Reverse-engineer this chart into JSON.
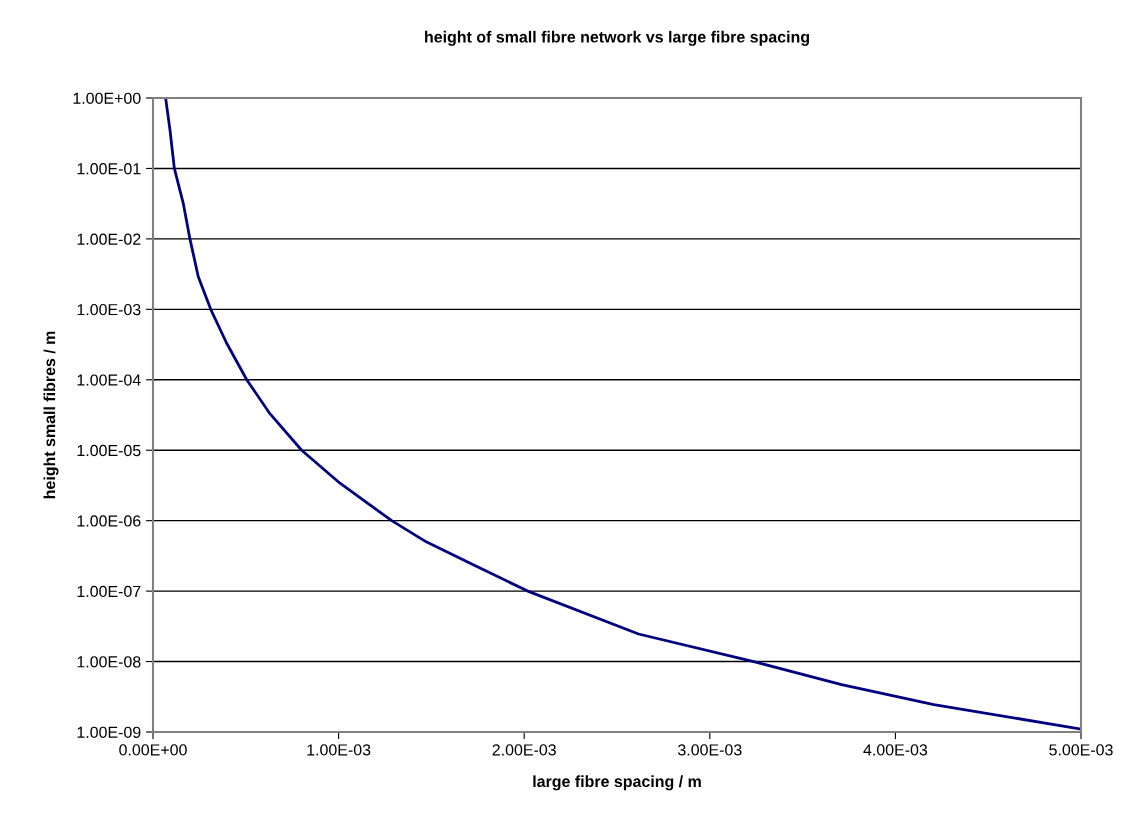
{
  "chart_data": {
    "type": "line",
    "title": "height of small fibre network vs large fibre spacing",
    "xlabel": "large fibre spacing / m",
    "ylabel": "height small fibres / m",
    "series": [
      {
        "color": "#000080",
        "x": [
          6.8e-05,
          9.16e-05,
          0.000115,
          0.000163,
          0.000199,
          0.000244,
          0.000311,
          0.000397,
          0.000505,
          0.00063,
          0.000801,
          0.0010075,
          0.001286,
          0.001472,
          0.00172,
          0.002019,
          0.002616,
          0.003237,
          0.00371,
          0.004207,
          0.005
        ],
        "values": [
          1.0,
          0.35,
          0.1,
          0.032,
          0.01,
          0.0029,
          0.001,
          0.00033,
          0.0001,
          3.3e-05,
          1e-05,
          3.4e-06,
          1e-06,
          5e-07,
          2.4e-07,
          1e-07,
          2.46e-08,
          1e-08,
          4.7e-09,
          2.45e-09,
          1.1e-09
        ]
      }
    ],
    "xlim": [
      0,
      0.005
    ],
    "xticks": [
      {
        "value": 0,
        "label": "0.00E+00"
      },
      {
        "value": 0.001,
        "label": "1.00E-03"
      },
      {
        "value": 0.002,
        "label": "2.00E-03"
      },
      {
        "value": 0.003,
        "label": "3.00E-03"
      },
      {
        "value": 0.004,
        "label": "4.00E-03"
      },
      {
        "value": 0.005,
        "label": "5.00E-03"
      }
    ],
    "log": "y",
    "ylim": [
      1e-09,
      1
    ],
    "yticks": [
      {
        "value": 1e-09,
        "label": "1.00E-09"
      },
      {
        "value": 1e-08,
        "label": "1.00E-08"
      },
      {
        "value": 1e-07,
        "label": "1.00E-07"
      },
      {
        "value": 1e-06,
        "label": "1.00E-06"
      },
      {
        "value": 1e-05,
        "label": "1.00E-05"
      },
      {
        "value": 0.0001,
        "label": "1.00E-04"
      },
      {
        "value": 0.001,
        "label": "1.00E-03"
      },
      {
        "value": 0.01,
        "label": "1.00E-02"
      },
      {
        "value": 0.1,
        "label": "1.00E-01"
      },
      {
        "value": 1,
        "label": "1.00E+00"
      }
    ],
    "grid": "y",
    "marker": "none",
    "line_style": "solid"
  }
}
